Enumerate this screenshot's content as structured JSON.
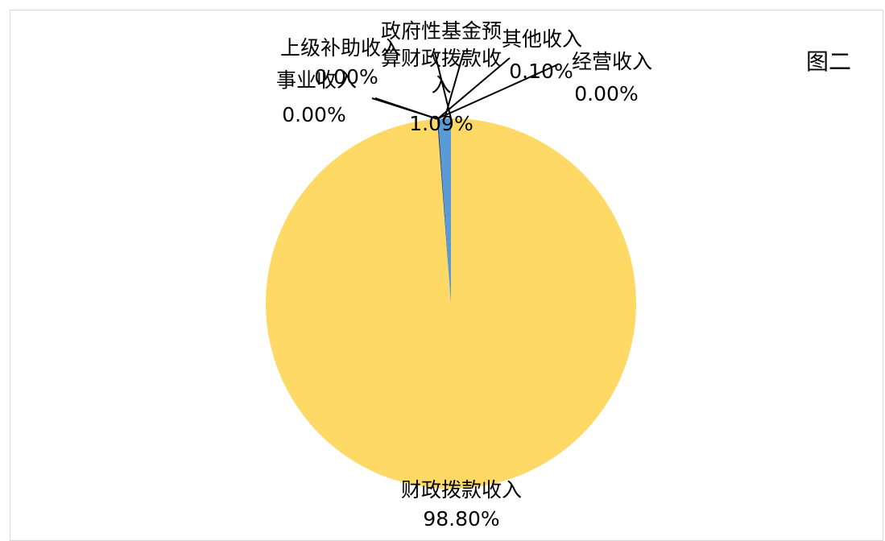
{
  "figure_title": "图二",
  "chart_data": {
    "type": "pie",
    "title": "",
    "slices": [
      {
        "name": "财政拨款收入",
        "value": 98.8,
        "label": "98.80%",
        "color": "#ffd966"
      },
      {
        "name": "上级补助收入",
        "value": 0.0,
        "label": "0.00%",
        "color": "#a5a5a5"
      },
      {
        "name": "事业收入",
        "value": 0.0,
        "label": "0.00%",
        "color": "#ed7d31"
      },
      {
        "name": "经营收入",
        "value": 0.0,
        "label": "0.00%",
        "color": "#70ad47"
      },
      {
        "name": "其他收入",
        "value": 0.1,
        "label": "0.10%",
        "color": "#264478"
      },
      {
        "name": "政府性基金预算财政拨款收入",
        "value": 1.09,
        "label": "1.09%",
        "color": "#5b9bd5"
      }
    ],
    "legend": "none"
  }
}
